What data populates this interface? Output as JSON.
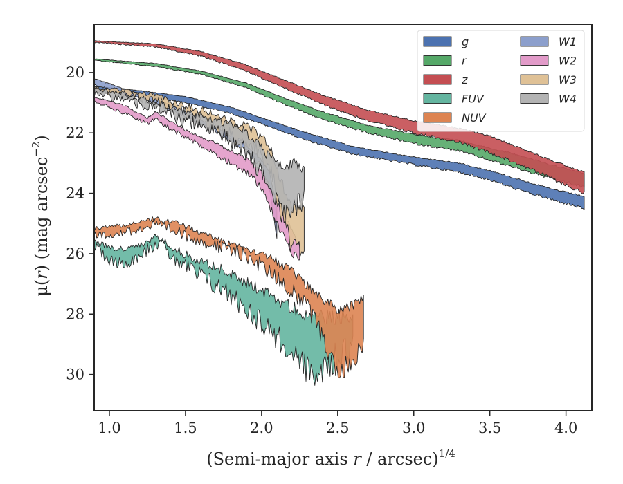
{
  "chart_data": {
    "type": "area",
    "xlabel": "(Semi-major axis r / arcsec)",
    "xlabel_main": "(Semi-major axis ",
    "xlabel_var": "r",
    "xlabel_tail": " / arcsec)",
    "xlabel_sup": "1/4",
    "ylabel_prefix": "μ(",
    "ylabel_var": "r",
    "ylabel_mid": ") (mag arcsec",
    "ylabel_sup": "−2",
    "ylabel_suffix": ")",
    "xlim": [
      0.9,
      4.17
    ],
    "ylim": [
      31.2,
      18.4
    ],
    "y_inverted": true,
    "xticks": [
      1.0,
      1.5,
      2.0,
      2.5,
      3.0,
      3.5,
      4.0
    ],
    "xtick_labels": [
      "1.0",
      "1.5",
      "2.0",
      "2.5",
      "3.0",
      "3.5",
      "4.0"
    ],
    "yticks": [
      20,
      22,
      24,
      26,
      28,
      30
    ],
    "ytick_labels": [
      "20",
      "22",
      "24",
      "26",
      "28",
      "30"
    ],
    "grid": false,
    "legend_position": "top-right",
    "legend_columns": 2,
    "series": [
      {
        "name": "g",
        "color": "#4c72b0",
        "noise": 0.05,
        "lower": [
          [
            0.9,
            20.45
          ],
          [
            1.2,
            20.6
          ],
          [
            1.5,
            20.8
          ],
          [
            1.8,
            21.15
          ],
          [
            2.0,
            21.5
          ],
          [
            2.3,
            22.0
          ],
          [
            2.6,
            22.45
          ],
          [
            3.0,
            22.8
          ],
          [
            3.3,
            23.0
          ],
          [
            3.5,
            23.25
          ],
          [
            3.7,
            23.55
          ],
          [
            3.9,
            23.85
          ],
          [
            4.12,
            24.1
          ]
        ],
        "upper": [
          [
            0.9,
            20.6
          ],
          [
            1.2,
            20.75
          ],
          [
            1.5,
            21.0
          ],
          [
            1.8,
            21.35
          ],
          [
            2.0,
            21.7
          ],
          [
            2.3,
            22.25
          ],
          [
            2.6,
            22.7
          ],
          [
            3.0,
            23.05
          ],
          [
            3.3,
            23.3
          ],
          [
            3.5,
            23.55
          ],
          [
            3.7,
            23.9
          ],
          [
            3.9,
            24.2
          ],
          [
            4.12,
            24.5
          ]
        ]
      },
      {
        "name": "r",
        "color": "#55a868",
        "noise": 0.05,
        "lower": [
          [
            0.9,
            19.55
          ],
          [
            1.3,
            19.7
          ],
          [
            1.6,
            19.95
          ],
          [
            1.9,
            20.35
          ],
          [
            2.1,
            20.75
          ],
          [
            2.4,
            21.3
          ],
          [
            2.7,
            21.75
          ],
          [
            3.0,
            22.05
          ],
          [
            3.3,
            22.25
          ],
          [
            3.5,
            22.5
          ],
          [
            3.7,
            22.75
          ],
          [
            3.9,
            23.05
          ],
          [
            4.12,
            23.35
          ]
        ],
        "upper": [
          [
            0.9,
            19.6
          ],
          [
            1.3,
            19.8
          ],
          [
            1.6,
            20.05
          ],
          [
            1.9,
            20.5
          ],
          [
            2.1,
            20.95
          ],
          [
            2.4,
            21.55
          ],
          [
            2.7,
            22.0
          ],
          [
            3.0,
            22.35
          ],
          [
            3.3,
            22.6
          ],
          [
            3.5,
            22.9
          ],
          [
            3.7,
            23.2
          ],
          [
            3.9,
            23.5
          ],
          [
            4.12,
            23.8
          ]
        ]
      },
      {
        "name": "z",
        "color": "#c44e52",
        "noise": 0.06,
        "lower": [
          [
            0.9,
            18.95
          ],
          [
            1.3,
            19.05
          ],
          [
            1.6,
            19.3
          ],
          [
            1.9,
            19.75
          ],
          [
            2.1,
            20.15
          ],
          [
            2.4,
            20.75
          ],
          [
            2.7,
            21.25
          ],
          [
            3.0,
            21.6
          ],
          [
            3.3,
            21.85
          ],
          [
            3.5,
            22.1
          ],
          [
            3.7,
            22.5
          ],
          [
            3.9,
            22.9
          ],
          [
            4.12,
            23.3
          ]
        ],
        "upper": [
          [
            0.9,
            19.0
          ],
          [
            1.3,
            19.15
          ],
          [
            1.6,
            19.45
          ],
          [
            1.9,
            19.95
          ],
          [
            2.1,
            20.4
          ],
          [
            2.4,
            21.05
          ],
          [
            2.7,
            21.6
          ],
          [
            3.0,
            22.0
          ],
          [
            3.3,
            22.3
          ],
          [
            3.5,
            22.65
          ],
          [
            3.7,
            23.05
          ],
          [
            3.9,
            23.5
          ],
          [
            4.12,
            24.0
          ]
        ]
      },
      {
        "name": "FUV",
        "color": "#64b5a0",
        "noise": 0.55,
        "lower": [
          [
            0.9,
            25.55
          ],
          [
            1.0,
            25.8
          ],
          [
            1.1,
            25.85
          ],
          [
            1.2,
            25.75
          ],
          [
            1.32,
            25.4
          ],
          [
            1.45,
            25.9
          ],
          [
            1.6,
            26.25
          ],
          [
            1.75,
            26.55
          ],
          [
            1.9,
            26.95
          ],
          [
            2.05,
            27.35
          ],
          [
            2.2,
            27.8
          ],
          [
            2.35,
            28.1
          ],
          [
            2.5,
            28.1
          ],
          [
            2.6,
            28.0
          ]
        ],
        "upper": [
          [
            0.9,
            25.75
          ],
          [
            1.0,
            26.2
          ],
          [
            1.1,
            26.35
          ],
          [
            1.2,
            26.0
          ],
          [
            1.32,
            25.6
          ],
          [
            1.45,
            26.25
          ],
          [
            1.6,
            26.75
          ],
          [
            1.75,
            27.2
          ],
          [
            1.9,
            27.8
          ],
          [
            2.05,
            28.5
          ],
          [
            2.2,
            29.3
          ],
          [
            2.35,
            30.1
          ],
          [
            2.5,
            29.4
          ],
          [
            2.6,
            29.0
          ]
        ]
      },
      {
        "name": "NUV",
        "color": "#dd8452",
        "noise": 0.38,
        "lower": [
          [
            0.9,
            25.15
          ],
          [
            1.1,
            25.05
          ],
          [
            1.3,
            24.85
          ],
          [
            1.45,
            25.0
          ],
          [
            1.6,
            25.3
          ],
          [
            1.75,
            25.6
          ],
          [
            1.9,
            25.8
          ],
          [
            2.05,
            26.1
          ],
          [
            2.2,
            26.6
          ],
          [
            2.35,
            27.3
          ],
          [
            2.5,
            27.85
          ],
          [
            2.6,
            27.7
          ],
          [
            2.67,
            27.5
          ]
        ],
        "upper": [
          [
            0.9,
            25.4
          ],
          [
            1.1,
            25.3
          ],
          [
            1.3,
            25.05
          ],
          [
            1.45,
            25.3
          ],
          [
            1.6,
            25.55
          ],
          [
            1.75,
            25.85
          ],
          [
            1.9,
            26.05
          ],
          [
            2.05,
            26.6
          ],
          [
            2.2,
            27.2
          ],
          [
            2.35,
            28.1
          ],
          [
            2.5,
            30.0
          ],
          [
            2.6,
            29.5
          ],
          [
            2.67,
            29.0
          ]
        ]
      },
      {
        "name": "W1",
        "color": "#8c9fcc",
        "noise": 0.1,
        "lower": [
          [
            0.9,
            20.2
          ],
          [
            1.1,
            20.55
          ],
          [
            1.3,
            20.85
          ],
          [
            1.5,
            21.3
          ],
          [
            1.7,
            21.8
          ],
          [
            1.9,
            22.4
          ],
          [
            2.0,
            22.9
          ],
          [
            2.05,
            23.3
          ],
          [
            2.1,
            24.5
          ]
        ],
        "upper": [
          [
            0.9,
            20.4
          ],
          [
            1.1,
            20.7
          ],
          [
            1.3,
            21.0
          ],
          [
            1.5,
            21.45
          ],
          [
            1.7,
            21.95
          ],
          [
            1.9,
            22.6
          ],
          [
            2.0,
            23.1
          ],
          [
            2.05,
            23.8
          ],
          [
            2.1,
            25.5
          ]
        ]
      },
      {
        "name": "W2",
        "color": "#e29bc9",
        "noise": 0.15,
        "lower": [
          [
            0.9,
            20.8
          ],
          [
            1.1,
            21.1
          ],
          [
            1.25,
            21.5
          ],
          [
            1.3,
            21.3
          ],
          [
            1.5,
            21.9
          ],
          [
            1.7,
            22.35
          ],
          [
            1.9,
            22.85
          ],
          [
            2.0,
            23.3
          ],
          [
            2.1,
            24.2
          ],
          [
            2.2,
            25.2
          ],
          [
            2.25,
            25.8
          ]
        ],
        "upper": [
          [
            0.9,
            20.95
          ],
          [
            1.1,
            21.35
          ],
          [
            1.25,
            21.7
          ],
          [
            1.3,
            21.55
          ],
          [
            1.5,
            22.15
          ],
          [
            1.7,
            22.7
          ],
          [
            1.9,
            23.3
          ],
          [
            2.0,
            23.8
          ],
          [
            2.1,
            25.0
          ],
          [
            2.2,
            26.0
          ],
          [
            2.25,
            26.2
          ]
        ]
      },
      {
        "name": "W3",
        "color": "#dfc196",
        "noise": 0.35,
        "lower": [
          [
            0.9,
            20.5
          ],
          [
            1.1,
            20.6
          ],
          [
            1.3,
            20.75
          ],
          [
            1.5,
            21.1
          ],
          [
            1.7,
            21.4
          ],
          [
            1.85,
            21.7
          ],
          [
            1.95,
            21.9
          ],
          [
            2.05,
            22.4
          ],
          [
            2.12,
            23.5
          ],
          [
            2.2,
            24.5
          ],
          [
            2.28,
            24.3
          ]
        ],
        "upper": [
          [
            0.9,
            20.6
          ],
          [
            1.1,
            20.75
          ],
          [
            1.3,
            20.95
          ],
          [
            1.5,
            21.35
          ],
          [
            1.7,
            21.8
          ],
          [
            1.85,
            22.2
          ],
          [
            1.95,
            22.5
          ],
          [
            2.05,
            23.0
          ],
          [
            2.12,
            24.5
          ],
          [
            2.2,
            25.8
          ],
          [
            2.28,
            26.0
          ]
        ]
      },
      {
        "name": "W4",
        "color": "#b3b3b3",
        "noise": 0.4,
        "lower": [
          [
            0.9,
            20.55
          ],
          [
            1.1,
            20.7
          ],
          [
            1.3,
            21.0
          ],
          [
            1.5,
            21.3
          ],
          [
            1.7,
            21.6
          ],
          [
            1.85,
            21.8
          ],
          [
            1.95,
            22.2
          ],
          [
            2.05,
            22.8
          ],
          [
            2.15,
            23.2
          ],
          [
            2.22,
            23.0
          ],
          [
            2.28,
            23.2
          ]
        ],
        "upper": [
          [
            0.9,
            20.7
          ],
          [
            1.1,
            20.9
          ],
          [
            1.3,
            21.2
          ],
          [
            1.5,
            21.6
          ],
          [
            1.7,
            22.0
          ],
          [
            1.85,
            22.4
          ],
          [
            1.95,
            23.0
          ],
          [
            2.05,
            23.8
          ],
          [
            2.15,
            24.6
          ],
          [
            2.22,
            24.4
          ],
          [
            2.28,
            24.2
          ]
        ]
      }
    ]
  }
}
